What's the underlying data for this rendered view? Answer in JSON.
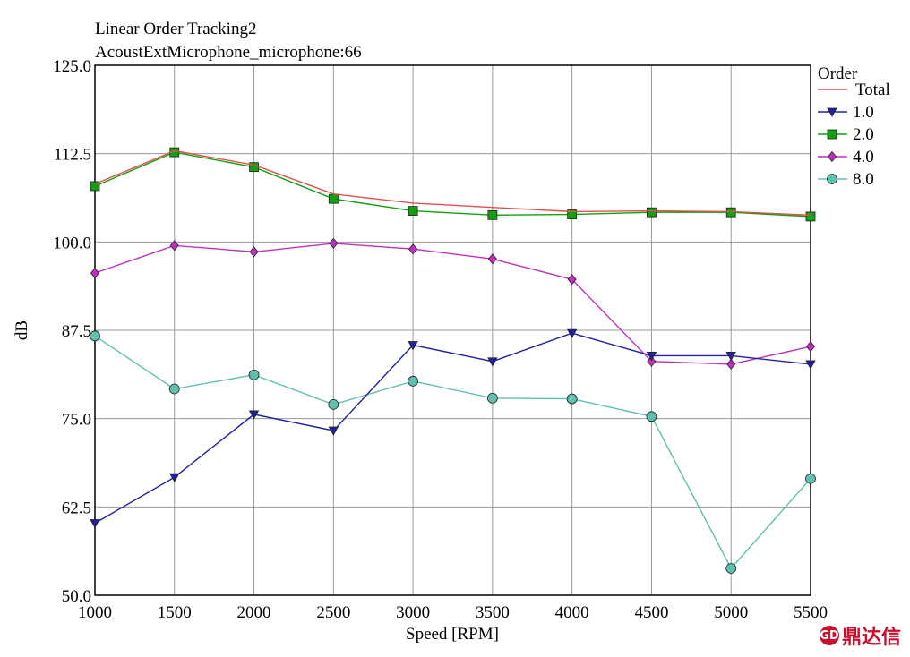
{
  "chart_data": {
    "type": "line",
    "title": "Linear Order Tracking2",
    "subtitle": "AcoustExtMicrophone_microphone:66",
    "xlabel": "Speed [RPM]",
    "ylabel": "dB",
    "xlim": [
      1000,
      5500
    ],
    "ylim": [
      50.0,
      125.0
    ],
    "x": [
      1000,
      1500,
      2000,
      2500,
      3000,
      3500,
      4000,
      4500,
      5000,
      5500
    ],
    "x_ticks": [
      "1000",
      "1500",
      "2000",
      "2500",
      "3000",
      "3500",
      "4000",
      "4500",
      "5000",
      "5500"
    ],
    "y_ticks": [
      {
        "value": 125.0,
        "label": "125.0"
      },
      {
        "value": 112.5,
        "label": "112.5"
      },
      {
        "value": 100.0,
        "label": "100.0"
      },
      {
        "value": 87.5,
        "label": "87.5"
      },
      {
        "value": 75.0,
        "label": "75.0"
      },
      {
        "value": 62.5,
        "label": "62.5"
      },
      {
        "value": 50.0,
        "label": "50.0"
      }
    ],
    "grid": true,
    "legend_title": "Order",
    "legend_position": "right",
    "series": [
      {
        "name": "Total",
        "color": "#e05050",
        "marker": "none",
        "values": [
          108.2,
          112.9,
          110.9,
          106.8,
          105.5,
          104.9,
          104.3,
          104.4,
          104.3,
          103.8
        ]
      },
      {
        "name": "1.0",
        "color": "#2020a0",
        "marker": "triangle-down",
        "values": [
          60.2,
          66.7,
          75.6,
          73.3,
          85.4,
          83.1,
          87.1,
          83.9,
          83.9,
          82.7
        ]
      },
      {
        "name": "2.0",
        "color": "#10a010",
        "marker": "square",
        "values": [
          107.9,
          112.7,
          110.6,
          106.1,
          104.4,
          103.8,
          103.9,
          104.2,
          104.2,
          103.6
        ]
      },
      {
        "name": "4.0",
        "color": "#c030c0",
        "marker": "diamond",
        "values": [
          95.6,
          99.5,
          98.6,
          99.8,
          99.0,
          97.6,
          94.7,
          83.1,
          82.7,
          85.2
        ]
      },
      {
        "name": "8.0",
        "color": "#60c0b0",
        "marker": "circle",
        "values": [
          86.7,
          79.2,
          81.2,
          77.0,
          80.3,
          77.9,
          77.8,
          75.3,
          53.8,
          66.5
        ]
      }
    ]
  },
  "watermark": {
    "logo_text": "GD",
    "text": "鼎达信"
  }
}
